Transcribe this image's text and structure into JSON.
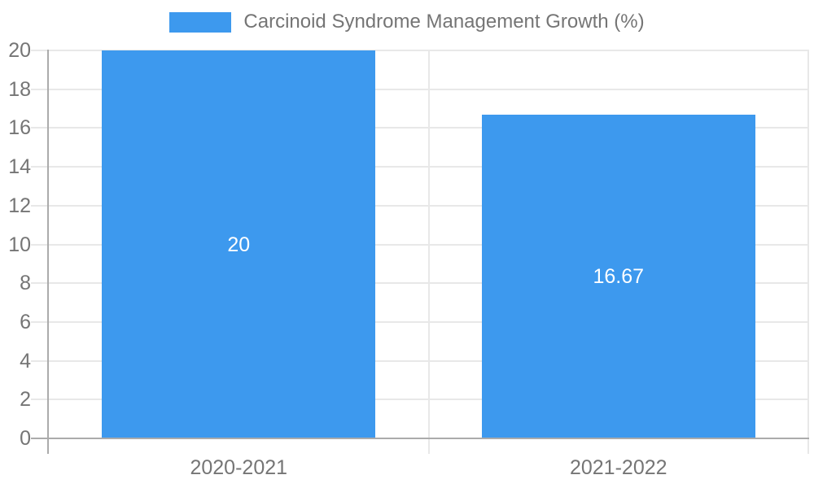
{
  "legend": {
    "label": "Carcinoid Syndrome Management Growth (%)"
  },
  "colors": {
    "bar": "#3D99EE",
    "grid": "#e8e8e8",
    "axis": "#ababab",
    "tick_text": "#757575",
    "data_label_text": "#ffffff",
    "background": "#ffffff"
  },
  "chart_data": {
    "type": "bar",
    "title": "Carcinoid Syndrome Management Growth (%)",
    "categories": [
      "2020-2021",
      "2021-2022"
    ],
    "values": [
      20,
      16.67
    ],
    "value_labels": [
      "20",
      "16.67"
    ],
    "xlabel": "",
    "ylabel": "",
    "ylim": [
      0,
      20
    ],
    "ytick_step": 2,
    "yticks": [
      0,
      2,
      4,
      6,
      8,
      10,
      12,
      14,
      16,
      18,
      20
    ],
    "grid": true,
    "legend_position": "top-center"
  }
}
